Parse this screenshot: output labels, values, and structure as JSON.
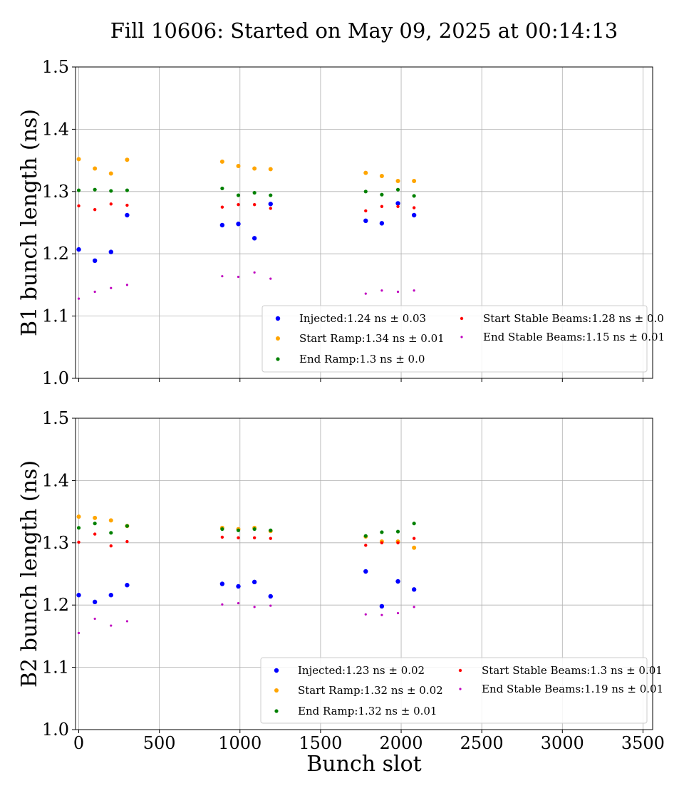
{
  "title": "Fill 10606: Started on May 09, 2025 at 00:14:13",
  "xlabel": "Bunch slot",
  "colors": {
    "Injected": "#0000ff",
    "Start Ramp": "#ffa500",
    "End Ramp": "#008000",
    "Start Stable Beams": "#ff0000",
    "End Stable Beams": "#bf00bf"
  },
  "chart_data": [
    {
      "type": "scatter",
      "ylabel": "B1 bunch length (ns)",
      "xlim": [
        -20,
        3560
      ],
      "ylim": [
        1.0,
        1.5
      ],
      "xticks": [
        0,
        500,
        1000,
        1500,
        2000,
        2500,
        3000,
        3500
      ],
      "yticks": [
        1.0,
        1.1,
        1.2,
        1.3,
        1.4,
        1.5
      ],
      "show_xtick_labels": false,
      "grid": true,
      "legend_position": "lower-right",
      "series": [
        {
          "name": "Injected",
          "label": "Injected:1.24 ns ± 0.03",
          "size": 3.2,
          "x": [
            0,
            100,
            200,
            300,
            890,
            990,
            1090,
            1190,
            1780,
            1880,
            1980,
            2080
          ],
          "y": [
            1.207,
            1.189,
            1.203,
            1.262,
            1.246,
            1.248,
            1.225,
            1.28,
            1.253,
            1.249,
            1.281,
            1.262
          ]
        },
        {
          "name": "Start Ramp",
          "label": "Start Ramp:1.34 ns ± 0.01",
          "size": 3.0,
          "x": [
            0,
            100,
            200,
            300,
            890,
            990,
            1090,
            1190,
            1780,
            1880,
            1980,
            2080
          ],
          "y": [
            1.352,
            1.337,
            1.329,
            1.351,
            1.348,
            1.341,
            1.337,
            1.336,
            1.33,
            1.325,
            1.317,
            1.317
          ]
        },
        {
          "name": "End Ramp",
          "label": "End Ramp:1.3 ns ± 0.0",
          "size": 2.6,
          "x": [
            0,
            100,
            200,
            300,
            890,
            990,
            1090,
            1190,
            1780,
            1880,
            1980,
            2080
          ],
          "y": [
            1.302,
            1.303,
            1.301,
            1.302,
            1.305,
            1.294,
            1.298,
            1.294,
            1.3,
            1.295,
            1.303,
            1.293
          ]
        },
        {
          "name": "Start Stable Beams",
          "label": "Start Stable Beams:1.28 ns ± 0.0",
          "size": 2.2,
          "x": [
            0,
            100,
            200,
            300,
            890,
            990,
            1090,
            1190,
            1780,
            1880,
            1980,
            2080
          ],
          "y": [
            1.277,
            1.271,
            1.28,
            1.278,
            1.275,
            1.279,
            1.279,
            1.273,
            1.269,
            1.276,
            1.276,
            1.274
          ]
        },
        {
          "name": "End Stable Beams",
          "label": "End Stable Beams:1.15 ns ± 0.01",
          "size": 1.6,
          "x": [
            0,
            100,
            200,
            300,
            890,
            990,
            1090,
            1190,
            1780,
            1880,
            1980,
            2080
          ],
          "y": [
            1.128,
            1.139,
            1.145,
            1.15,
            1.164,
            1.163,
            1.17,
            1.16,
            1.136,
            1.141,
            1.139,
            1.141
          ]
        }
      ]
    },
    {
      "type": "scatter",
      "ylabel": "B2 bunch length (ns)",
      "xlim": [
        -20,
        3560
      ],
      "ylim": [
        1.0,
        1.5
      ],
      "xticks": [
        0,
        500,
        1000,
        1500,
        2000,
        2500,
        3000,
        3500
      ],
      "yticks": [
        1.0,
        1.1,
        1.2,
        1.3,
        1.4,
        1.5
      ],
      "show_xtick_labels": true,
      "grid": true,
      "legend_position": "lower-right",
      "series": [
        {
          "name": "Injected",
          "label": "Injected:1.23 ns ± 0.02",
          "size": 3.2,
          "x": [
            0,
            100,
            200,
            300,
            890,
            990,
            1090,
            1190,
            1780,
            1880,
            1980,
            2080
          ],
          "y": [
            1.216,
            1.205,
            1.216,
            1.232,
            1.234,
            1.23,
            1.237,
            1.214,
            1.254,
            1.198,
            1.238,
            1.225
          ]
        },
        {
          "name": "Start Ramp",
          "label": "Start Ramp:1.32 ns ± 0.02",
          "size": 3.0,
          "x": [
            0,
            100,
            200,
            300,
            890,
            990,
            1090,
            1190,
            1780,
            1880,
            1980,
            2080
          ],
          "y": [
            1.342,
            1.34,
            1.336,
            1.327,
            1.324,
            1.322,
            1.324,
            1.319,
            1.31,
            1.302,
            1.302,
            1.292
          ]
        },
        {
          "name": "End Ramp",
          "label": "End Ramp:1.32 ns ± 0.01",
          "size": 2.6,
          "x": [
            0,
            100,
            200,
            300,
            890,
            990,
            1090,
            1190,
            1780,
            1880,
            1980,
            2080
          ],
          "y": [
            1.324,
            1.331,
            1.316,
            1.327,
            1.322,
            1.32,
            1.322,
            1.32,
            1.311,
            1.317,
            1.318,
            1.331
          ]
        },
        {
          "name": "Start Stable Beams",
          "label": "Start Stable Beams:1.3 ns ± 0.01",
          "size": 2.2,
          "x": [
            0,
            100,
            200,
            300,
            890,
            990,
            1090,
            1190,
            1780,
            1880,
            1980,
            2080
          ],
          "y": [
            1.301,
            1.314,
            1.295,
            1.302,
            1.309,
            1.308,
            1.308,
            1.307,
            1.296,
            1.3,
            1.3,
            1.307
          ]
        },
        {
          "name": "End Stable Beams",
          "label": "End Stable Beams:1.19 ns ± 0.01",
          "size": 1.6,
          "x": [
            0,
            100,
            200,
            300,
            890,
            990,
            1090,
            1190,
            1780,
            1880,
            1980,
            2080
          ],
          "y": [
            1.155,
            1.178,
            1.167,
            1.174,
            1.201,
            1.203,
            1.197,
            1.199,
            1.185,
            1.184,
            1.187,
            1.197
          ]
        }
      ]
    }
  ]
}
